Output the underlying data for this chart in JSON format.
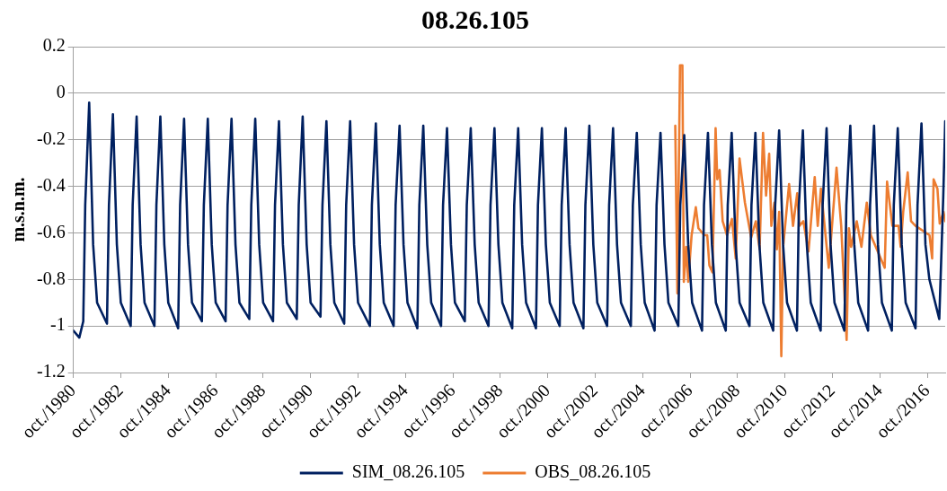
{
  "chart_data": {
    "type": "line",
    "title": "08.26.105",
    "ylabel": "m.s.n.m.",
    "xlim": [
      "1980-10",
      "2017-07"
    ],
    "xticks": [
      {
        "value": "1980-10",
        "label": "oct./1980"
      },
      {
        "value": "1982-10",
        "label": "oct./1982"
      },
      {
        "value": "1984-10",
        "label": "oct./1984"
      },
      {
        "value": "1986-10",
        "label": "oct./1986"
      },
      {
        "value": "1988-10",
        "label": "oct./1988"
      },
      {
        "value": "1990-10",
        "label": "oct./1990"
      },
      {
        "value": "1992-10",
        "label": "oct./1992"
      },
      {
        "value": "1994-10",
        "label": "oct./1994"
      },
      {
        "value": "1996-10",
        "label": "oct./1996"
      },
      {
        "value": "1998-10",
        "label": "oct./1998"
      },
      {
        "value": "2000-10",
        "label": "oct./2000"
      },
      {
        "value": "2002-10",
        "label": "oct./2002"
      },
      {
        "value": "2004-10",
        "label": "oct./2004"
      },
      {
        "value": "2006-10",
        "label": "oct./2006"
      },
      {
        "value": "2008-10",
        "label": "oct./2008"
      },
      {
        "value": "2010-10",
        "label": "oct./2010"
      },
      {
        "value": "2012-10",
        "label": "oct./2012"
      },
      {
        "value": "2014-10",
        "label": "oct./2014"
      },
      {
        "value": "2016-10",
        "label": "oct./2016"
      }
    ],
    "ylim": [
      -1.2,
      0.2
    ],
    "yticks": [
      -1.2,
      -1,
      -0.8,
      -0.6,
      -0.4,
      -0.2,
      0,
      0.2
    ],
    "grid": "y",
    "legend": "bottom",
    "marker": "none",
    "line_style": "solid",
    "series": [
      {
        "name": "SIM_08.26.105",
        "color": "#002060",
        "x": [
          "1980-10",
          "1981-01",
          "1981-03",
          "1981-04",
          "1981-06",
          "1981-08",
          "1981-10",
          "1982-03",
          "1982-04",
          "1982-06",
          "1982-08",
          "1982-10",
          "1983-03",
          "1983-04",
          "1983-06",
          "1983-08",
          "1983-10",
          "1984-03",
          "1984-04",
          "1984-06",
          "1984-08",
          "1984-10",
          "1985-03",
          "1985-04",
          "1985-06",
          "1985-08",
          "1985-10",
          "1986-03",
          "1986-04",
          "1986-06",
          "1986-08",
          "1986-10",
          "1987-03",
          "1987-04",
          "1987-06",
          "1987-08",
          "1987-10",
          "1988-03",
          "1988-04",
          "1988-06",
          "1988-08",
          "1988-10",
          "1989-03",
          "1989-04",
          "1989-06",
          "1989-08",
          "1989-10",
          "1990-03",
          "1990-04",
          "1990-06",
          "1990-08",
          "1990-10",
          "1991-03",
          "1991-04",
          "1991-06",
          "1991-08",
          "1991-10",
          "1992-03",
          "1992-04",
          "1992-06",
          "1992-08",
          "1992-10",
          "1993-04",
          "1993-05",
          "1993-07",
          "1993-09",
          "1993-11",
          "1994-04",
          "1994-05",
          "1994-07",
          "1994-09",
          "1994-11",
          "1995-04",
          "1995-05",
          "1995-07",
          "1995-09",
          "1995-11",
          "1996-04",
          "1996-05",
          "1996-07",
          "1996-09",
          "1996-11",
          "1997-04",
          "1997-05",
          "1997-07",
          "1997-09",
          "1997-11",
          "1998-04",
          "1998-05",
          "1998-07",
          "1998-09",
          "1998-11",
          "1999-04",
          "1999-05",
          "1999-07",
          "1999-09",
          "1999-11",
          "2000-04",
          "2000-05",
          "2000-07",
          "2000-09",
          "2000-11",
          "2001-04",
          "2001-05",
          "2001-07",
          "2001-09",
          "2001-11",
          "2002-04",
          "2002-05",
          "2002-07",
          "2002-09",
          "2002-11",
          "2003-04",
          "2003-05",
          "2003-07",
          "2003-09",
          "2003-11",
          "2004-04",
          "2004-05",
          "2004-07",
          "2004-09",
          "2004-11",
          "2005-04",
          "2005-05",
          "2005-07",
          "2005-09",
          "2005-11",
          "2006-04",
          "2006-05",
          "2006-07",
          "2006-09",
          "2006-11",
          "2007-04",
          "2007-05",
          "2007-07",
          "2007-09",
          "2007-11",
          "2008-04",
          "2008-05",
          "2008-07",
          "2008-09",
          "2008-11",
          "2009-04",
          "2009-05",
          "2009-07",
          "2009-09",
          "2009-11",
          "2010-04",
          "2010-05",
          "2010-07",
          "2010-09",
          "2010-11",
          "2011-04",
          "2011-05",
          "2011-07",
          "2011-09",
          "2011-11",
          "2012-04",
          "2012-05",
          "2012-07",
          "2012-09",
          "2012-11",
          "2013-04",
          "2013-05",
          "2013-07",
          "2013-09",
          "2013-11",
          "2014-04",
          "2014-05",
          "2014-07",
          "2014-09",
          "2014-11",
          "2015-04",
          "2015-05",
          "2015-07",
          "2015-09",
          "2015-11",
          "2016-04",
          "2016-05",
          "2016-07",
          "2016-09",
          "2016-11",
          "2017-04",
          "2017-06",
          "2017-07"
        ],
        "values": [
          -1.02,
          -1.05,
          -0.98,
          -0.48,
          -0.04,
          -0.65,
          -0.9,
          -0.99,
          -0.48,
          -0.09,
          -0.65,
          -0.9,
          -1.0,
          -0.48,
          -0.1,
          -0.65,
          -0.9,
          -1.0,
          -0.48,
          -0.1,
          -0.65,
          -0.9,
          -1.01,
          -0.48,
          -0.11,
          -0.65,
          -0.9,
          -0.98,
          -0.48,
          -0.11,
          -0.65,
          -0.9,
          -0.98,
          -0.48,
          -0.11,
          -0.65,
          -0.9,
          -0.97,
          -0.48,
          -0.11,
          -0.65,
          -0.9,
          -0.98,
          -0.48,
          -0.12,
          -0.65,
          -0.9,
          -0.97,
          -0.48,
          -0.1,
          -0.65,
          -0.9,
          -0.96,
          -0.48,
          -0.12,
          -0.65,
          -0.9,
          -0.99,
          -0.48,
          -0.12,
          -0.65,
          -0.9,
          -1.0,
          -0.48,
          -0.13,
          -0.65,
          -0.9,
          -1.0,
          -0.48,
          -0.14,
          -0.65,
          -0.9,
          -1.01,
          -0.48,
          -0.14,
          -0.65,
          -0.9,
          -1.0,
          -0.48,
          -0.15,
          -0.65,
          -0.9,
          -0.98,
          -0.48,
          -0.15,
          -0.65,
          -0.9,
          -1.0,
          -0.48,
          -0.15,
          -0.65,
          -0.9,
          -1.01,
          -0.48,
          -0.15,
          -0.65,
          -0.9,
          -1.01,
          -0.48,
          -0.15,
          -0.65,
          -0.9,
          -1.0,
          -0.48,
          -0.15,
          -0.65,
          -0.9,
          -1.01,
          -0.48,
          -0.14,
          -0.65,
          -0.9,
          -1.0,
          -0.48,
          -0.15,
          -0.65,
          -0.9,
          -1.0,
          -0.48,
          -0.17,
          -0.65,
          -0.9,
          -1.02,
          -0.48,
          -0.17,
          -0.65,
          -0.9,
          -1.0,
          -0.48,
          -0.18,
          -0.65,
          -0.9,
          -1.02,
          -0.48,
          -0.17,
          -0.65,
          -0.9,
          -1.02,
          -0.48,
          -0.17,
          -0.65,
          -0.9,
          -1.0,
          -0.48,
          -0.17,
          -0.65,
          -0.9,
          -1.02,
          -0.48,
          -0.16,
          -0.65,
          -0.9,
          -1.02,
          -0.48,
          -0.16,
          -0.65,
          -0.9,
          -1.02,
          -0.48,
          -0.15,
          -0.65,
          -0.9,
          -1.02,
          -0.48,
          -0.14,
          -0.65,
          -0.9,
          -1.02,
          -0.48,
          -0.14,
          -0.65,
          -0.9,
          -1.02,
          -0.48,
          -0.15,
          -0.65,
          -0.9,
          -1.01,
          -0.48,
          -0.13,
          -0.65,
          -0.8,
          -0.97,
          -0.45,
          -0.12
        ]
      },
      {
        "name": "OBS_08.26.105",
        "color": "#ed7d31",
        "x": [
          "2006-02-15",
          "2006-03-17",
          "2006-04-27",
          "2006-06-03",
          "2006-06-25",
          "2006-07-31",
          "2006-09-01",
          "2006-10-23",
          "2006-12-27",
          "2007-02-06",
          "2007-05-04",
          "2007-06-20",
          "2007-07-23",
          "2007-09-09",
          "2007-10-27",
          "2007-11-23",
          "2007-12-28",
          "2008-02-14",
          "2008-04-20",
          "2008-07-05",
          "2008-09-02",
          "2008-10-30",
          "2009-01-22",
          "2009-04-27",
          "2009-07-08",
          "2009-09-05",
          "2009-10-27",
          "2009-12-13",
          "2010-01-30",
          "2010-03-03",
          "2010-04-20",
          "2010-05-27",
          "2010-07-01",
          "2010-08-04",
          "2010-09-02",
          "2010-12-02",
          "2011-02-02",
          "2011-04-05",
          "2011-05-08",
          "2011-07-09",
          "2011-09-27",
          "2012-01-01",
          "2012-02-17",
          "2012-04-05",
          "2012-08-04",
          "2012-12-02",
          "2013-02-13",
          "2013-05-05",
          "2013-06-10",
          "2013-07-13",
          "2013-10-09",
          "2013-12-20",
          "2014-03-11",
          "2014-05-12",
          "2014-12-13",
          "2015-01-19",
          "2015-04-10",
          "2015-07-13",
          "2015-08-15",
          "2015-09-24",
          "2015-12-02",
          "2016-01-23",
          "2016-04-01",
          "2016-11-03",
          "2016-12-13",
          "2017-01-05",
          "2017-03-03",
          "2017-04-08",
          "2017-06-05",
          "2017-07-01"
        ],
        "values": [
          -0.14,
          -0.86,
          0.12,
          0.12,
          -0.81,
          -0.66,
          -0.81,
          -0.61,
          -0.49,
          -0.58,
          -0.61,
          -0.61,
          -0.74,
          -0.77,
          -0.15,
          -0.37,
          -0.33,
          -0.55,
          -0.61,
          -0.54,
          -0.71,
          -0.28,
          -0.47,
          -0.62,
          -0.55,
          -0.67,
          -0.17,
          -0.44,
          -0.26,
          -0.57,
          -0.47,
          -0.67,
          -0.51,
          -1.13,
          -0.66,
          -0.39,
          -0.57,
          -0.43,
          -0.57,
          -0.55,
          -0.68,
          -0.36,
          -0.57,
          -0.41,
          -0.75,
          -0.32,
          -0.57,
          -1.06,
          -0.58,
          -0.66,
          -0.55,
          -0.66,
          -0.47,
          -0.61,
          -0.75,
          -0.38,
          -0.57,
          -0.57,
          -0.66,
          -0.51,
          -0.34,
          -0.55,
          -0.57,
          -0.61,
          -0.71,
          -0.37,
          -0.41,
          -0.56,
          -0.51,
          -0.55
        ]
      }
    ]
  }
}
